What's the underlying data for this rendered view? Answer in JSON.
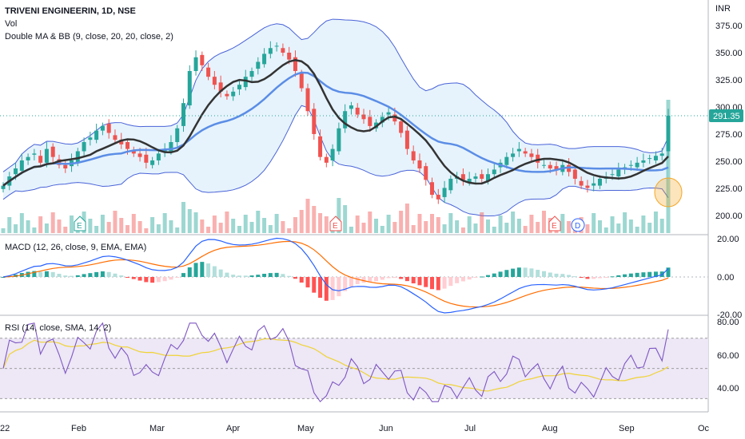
{
  "header": {
    "symbol_line": "TRIVENI ENGINEERIN, 1D, NSE",
    "volume_label": "Vol",
    "overlay_label": "Double MA & BB (9, close, 20, 20, close, 2)",
    "currency": "INR"
  },
  "price_axis": {
    "ticks": [
      "375.00",
      "350.00",
      "325.00",
      "300.00",
      "275.00",
      "250.00",
      "225.00",
      "200.00"
    ],
    "last_price": "291.35"
  },
  "macd": {
    "label": "MACD (12, 26, close, 9, EMA, EMA)",
    "ticks": [
      "20.00",
      "0.00",
      "-20.00"
    ]
  },
  "rsi": {
    "label": "RSI (14, close, SMA, 14, 2)",
    "ticks": [
      "80.00",
      "60.00",
      "40.00"
    ]
  },
  "time_axis": {
    "labels": [
      "22",
      "Feb",
      "Mar",
      "Apr",
      "May",
      "Jun",
      "Jul",
      "Aug",
      "Sep",
      "Oc"
    ]
  },
  "markers": [
    "E",
    "E",
    "E",
    "D"
  ],
  "colors": {
    "up": "#26a69a",
    "down": "#ef5350",
    "bb_line": "#4a63d8",
    "bb_fill": "#dbeefb",
    "ma_fast": "#333333",
    "ma_slow": "#5b8de6",
    "macd_line": "#2962ff",
    "signal_line": "#ff6d00",
    "rsi_line": "#7e57c2",
    "rsi_ma": "#f0d335",
    "rsi_band": "#ede7f6",
    "highlight": "#f5a623"
  },
  "chart_data": {
    "type": "candlestick",
    "ylim": [
      190,
      385
    ],
    "x_month_labels": [
      "Feb",
      "Mar",
      "Apr",
      "May",
      "Jun",
      "Jul",
      "Aug",
      "Sep",
      "Oc"
    ],
    "price_path": [
      230,
      238,
      245,
      252,
      255,
      258,
      250,
      262,
      255,
      248,
      245,
      252,
      260,
      268,
      272,
      278,
      282,
      276,
      270,
      266,
      262,
      258,
      255,
      250,
      252,
      258,
      262,
      268,
      280,
      302,
      330,
      342,
      335,
      325,
      318,
      312,
      308,
      312,
      318,
      325,
      330,
      338,
      345,
      350,
      352,
      346,
      340,
      330,
      315,
      295,
      275,
      255,
      250,
      262,
      280,
      295,
      300,
      292,
      288,
      282,
      285,
      290,
      294,
      286,
      276,
      262,
      252,
      245,
      235,
      222,
      218,
      228,
      236,
      238,
      235,
      236,
      238,
      236,
      240,
      244,
      250,
      255,
      258,
      262,
      258,
      255,
      250,
      248,
      245,
      244,
      248,
      242,
      236,
      230,
      228,
      232,
      236,
      238,
      240,
      244,
      246,
      248,
      250,
      252,
      254,
      256,
      258,
      291
    ]
  }
}
